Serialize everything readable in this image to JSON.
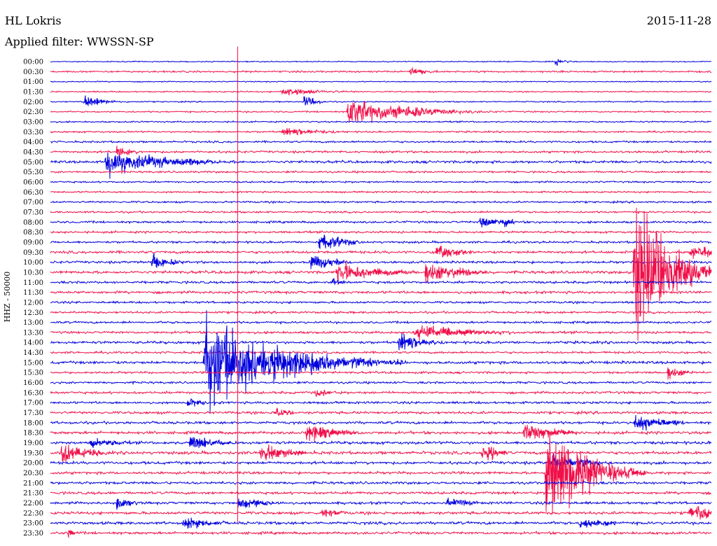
{
  "header": {
    "station": "HL Lokris",
    "date": "2015-11-28",
    "filter_text": "Applied filter: WWSSN-SP"
  },
  "colors": {
    "even_trace": "#0000dd",
    "odd_trace": "#f0104a"
  },
  "chart_data": {
    "type": "line",
    "title": "HL Lokris",
    "ylabel": "HHZ - 50000",
    "row_labels": [
      "00:00",
      "00:30",
      "01:00",
      "01:30",
      "02:00",
      "02:30",
      "03:00",
      "03:30",
      "04:00",
      "04:30",
      "05:00",
      "05:30",
      "06:00",
      "06:30",
      "07:00",
      "07:30",
      "08:00",
      "08:30",
      "09:00",
      "09:30",
      "10:00",
      "10:30",
      "11:00",
      "11:30",
      "12:00",
      "12:30",
      "13:00",
      "13:30",
      "14:00",
      "14:30",
      "15:00",
      "15:30",
      "16:00",
      "16:30",
      "17:00",
      "17:30",
      "18:00",
      "18:30",
      "19:00",
      "19:30",
      "20:00",
      "20:30",
      "21:00",
      "21:30",
      "22:00",
      "22:30",
      "23:00",
      "23:30"
    ],
    "row_minutes": 30,
    "noise_levels": [
      0.5,
      0.8,
      0.5,
      0.6,
      0.6,
      0.7,
      0.7,
      0.8,
      0.9,
      1.0,
      1.2,
      0.9,
      0.8,
      0.8,
      0.9,
      0.9,
      1.0,
      1.0,
      1.0,
      1.2,
      1.1,
      1.3,
      1.1,
      1.2,
      1.0,
      1.0,
      1.0,
      1.1,
      1.2,
      1.0,
      1.3,
      1.0,
      1.0,
      1.1,
      1.1,
      1.2,
      1.2,
      1.3,
      1.3,
      1.4,
      1.3,
      1.2,
      1.2,
      1.2,
      1.2,
      1.3,
      1.3,
      1.2
    ],
    "events": [
      {
        "row": 0,
        "minute": 22.9,
        "amplitude": 4,
        "duration_min": 0.5
      },
      {
        "row": 1,
        "minute": 16.3,
        "amplitude": 4,
        "duration_min": 1.0
      },
      {
        "row": 4,
        "minute": 11.5,
        "amplitude": 8,
        "duration_min": 0.5
      },
      {
        "row": 5,
        "minute": 13.5,
        "amplitude": 14,
        "duration_min": 2.5
      },
      {
        "row": 4,
        "minute": 1.5,
        "amplitude": 6,
        "duration_min": 1.0
      },
      {
        "row": 10,
        "minute": 2.5,
        "amplitude": 14,
        "duration_min": 2.5
      },
      {
        "row": 9,
        "minute": 3.0,
        "amplitude": 6,
        "duration_min": 0.7
      },
      {
        "row": 3,
        "minute": 10.5,
        "amplitude": 4,
        "duration_min": 2.0
      },
      {
        "row": 7,
        "minute": 10.5,
        "amplitude": 4,
        "duration_min": 2.0
      },
      {
        "row": 18,
        "minute": 12.2,
        "amplitude": 10,
        "duration_min": 1.0
      },
      {
        "row": 19,
        "minute": 17.5,
        "amplitude": 8,
        "duration_min": 1.0
      },
      {
        "row": 19,
        "minute": 29.0,
        "amplitude": 7,
        "duration_min": 2.0
      },
      {
        "row": 20,
        "minute": 4.6,
        "amplitude": 10,
        "duration_min": 0.7
      },
      {
        "row": 20,
        "minute": 11.8,
        "amplitude": 9,
        "duration_min": 1.0
      },
      {
        "row": 21,
        "minute": 13.0,
        "amplitude": 10,
        "duration_min": 2.0
      },
      {
        "row": 21,
        "minute": 17.0,
        "amplitude": 12,
        "duration_min": 1.5
      },
      {
        "row": 21,
        "minute": 26.5,
        "amplitude": 100,
        "duration_min": 1.2
      },
      {
        "row": 22,
        "minute": 12.8,
        "amplitude": 5,
        "duration_min": 0.5
      },
      {
        "row": 16,
        "minute": 19.5,
        "amplitude": 8,
        "duration_min": 0.7
      },
      {
        "row": 16,
        "minute": 20.5,
        "amplitude": 6,
        "duration_min": 0.5
      },
      {
        "row": 27,
        "minute": 16.5,
        "amplitude": 7,
        "duration_min": 3.0
      },
      {
        "row": 28,
        "minute": 15.8,
        "amplitude": 10,
        "duration_min": 1.0
      },
      {
        "row": 30,
        "minute": 7.0,
        "amplitude": 48,
        "duration_min": 3.0
      },
      {
        "row": 30,
        "minute": 8.6,
        "amplitude": 12,
        "duration_min": 1.5
      },
      {
        "row": 31,
        "minute": 28.0,
        "amplitude": 8,
        "duration_min": 0.7
      },
      {
        "row": 33,
        "minute": 12.0,
        "amplitude": 4,
        "duration_min": 1.0
      },
      {
        "row": 34,
        "minute": 6.2,
        "amplitude": 5,
        "duration_min": 0.7
      },
      {
        "row": 35,
        "minute": 10.2,
        "amplitude": 7,
        "duration_min": 0.6
      },
      {
        "row": 36,
        "minute": 26.5,
        "amplitude": 8,
        "duration_min": 1.5
      },
      {
        "row": 37,
        "minute": 11.6,
        "amplitude": 9,
        "duration_min": 1.5
      },
      {
        "row": 37,
        "minute": 21.5,
        "amplitude": 9,
        "duration_min": 1.5
      },
      {
        "row": 38,
        "minute": 6.3,
        "amplitude": 7,
        "duration_min": 1.5
      },
      {
        "row": 38,
        "minute": 1.8,
        "amplitude": 5,
        "duration_min": 1.5
      },
      {
        "row": 39,
        "minute": 0.5,
        "amplitude": 14,
        "duration_min": 1.0
      },
      {
        "row": 39,
        "minute": 9.5,
        "amplitude": 8,
        "duration_min": 1.5
      },
      {
        "row": 39,
        "minute": 19.6,
        "amplitude": 12,
        "duration_min": 0.6
      },
      {
        "row": 40,
        "minute": 22.8,
        "amplitude": 8,
        "duration_min": 1.5
      },
      {
        "row": 41,
        "minute": 22.5,
        "amplitude": 60,
        "duration_min": 1.5
      },
      {
        "row": 44,
        "minute": 8.5,
        "amplitude": 6,
        "duration_min": 1.5
      },
      {
        "row": 44,
        "minute": 18.0,
        "amplitude": 6,
        "duration_min": 1.0
      },
      {
        "row": 44,
        "minute": 3.0,
        "amplitude": 6,
        "duration_min": 0.7
      },
      {
        "row": 45,
        "minute": 12.3,
        "amplitude": 5,
        "duration_min": 1.0
      },
      {
        "row": 45,
        "minute": 29.0,
        "amplitude": 7,
        "duration_min": 1.5
      },
      {
        "row": 46,
        "minute": 6.0,
        "amplitude": 6,
        "duration_min": 1.5
      },
      {
        "row": 46,
        "minute": 24.0,
        "amplitude": 6,
        "duration_min": 1.5
      },
      {
        "row": 47,
        "minute": 0.8,
        "amplitude": 6,
        "duration_min": 0.3
      }
    ],
    "spike": {
      "minute": 8.5,
      "top_row": -1.5,
      "bottom_row": 46
    }
  }
}
